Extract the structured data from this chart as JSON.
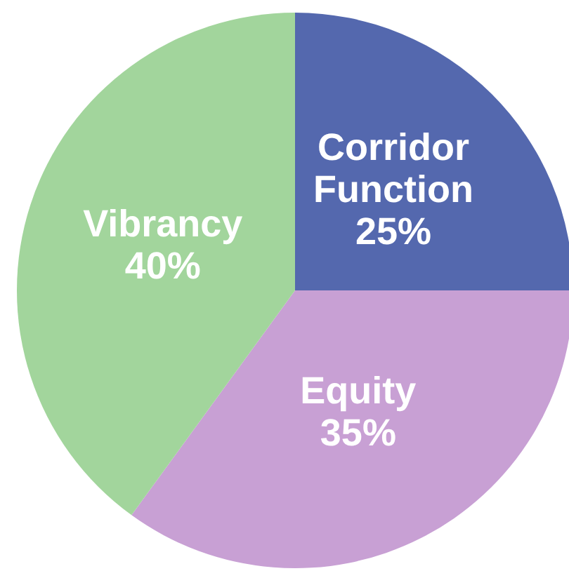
{
  "chart_data": {
    "type": "pie",
    "categories": [
      "Corridor Function",
      "Equity",
      "Vibrancy"
    ],
    "values": [
      25,
      35,
      40
    ],
    "colors": [
      "#5468ae",
      "#c8a0d4",
      "#a2d59c"
    ],
    "value_labels": [
      "25%",
      "35%",
      "40%"
    ]
  }
}
